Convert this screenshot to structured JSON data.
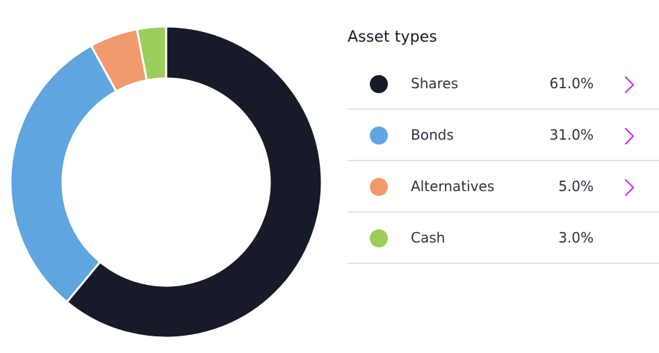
{
  "legend": {
    "title": "Asset types",
    "items": [
      {
        "label": "Shares",
        "value_text": "61.0%",
        "color": "#161a29",
        "has_chevron": true
      },
      {
        "label": "Bonds",
        "value_text": "31.0%",
        "color": "#5fa5df",
        "has_chevron": true
      },
      {
        "label": "Alternatives",
        "value_text": "5.0%",
        "color": "#f19a6d",
        "has_chevron": true
      },
      {
        "label": "Cash",
        "value_text": "3.0%",
        "color": "#9ccc5a",
        "has_chevron": false
      }
    ]
  },
  "chevron_color": "#c832e0",
  "chart_data": {
    "type": "pie",
    "donut": true,
    "categories": [
      "Shares",
      "Bonds",
      "Alternatives",
      "Cash"
    ],
    "values": [
      61.0,
      31.0,
      5.0,
      3.0
    ],
    "colors": [
      "#161a29",
      "#5fa5df",
      "#f19a6d",
      "#9ccc5a"
    ],
    "start": "top",
    "direction": "clockwise",
    "legend": "right"
  }
}
